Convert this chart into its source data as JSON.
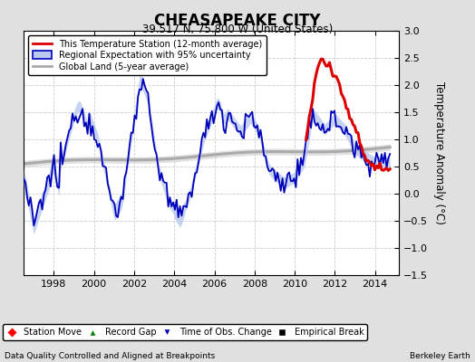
{
  "title": "CHEASAPEAKE CITY",
  "subtitle": "39.517 N, 75.800 W (United States)",
  "ylabel": "Temperature Anomaly (°C)",
  "footer_left": "Data Quality Controlled and Aligned at Breakpoints",
  "footer_right": "Berkeley Earth",
  "xlim": [
    1996.5,
    2015.2
  ],
  "ylim": [
    -1.5,
    3.0
  ],
  "yticks": [
    -1.5,
    -1.0,
    -0.5,
    0.0,
    0.5,
    1.0,
    1.5,
    2.0,
    2.5,
    3.0
  ],
  "xticks": [
    1998,
    2000,
    2002,
    2004,
    2006,
    2008,
    2010,
    2012,
    2014
  ],
  "bg_color": "#e0e0e0",
  "plot_bg_color": "#ffffff",
  "red_color": "#dd0000",
  "blue_color": "#0000bb",
  "blue_fill_color": "#b8c8ee",
  "gray_color": "#aaaaaa",
  "gray_fill_color": "#cccccc",
  "legend1_labels": [
    "This Temperature Station (12-month average)",
    "Regional Expectation with 95% uncertainty",
    "Global Land (5-year average)"
  ],
  "legend2_labels": [
    "Station Move",
    "Record Gap",
    "Time of Obs. Change",
    "Empirical Break"
  ]
}
